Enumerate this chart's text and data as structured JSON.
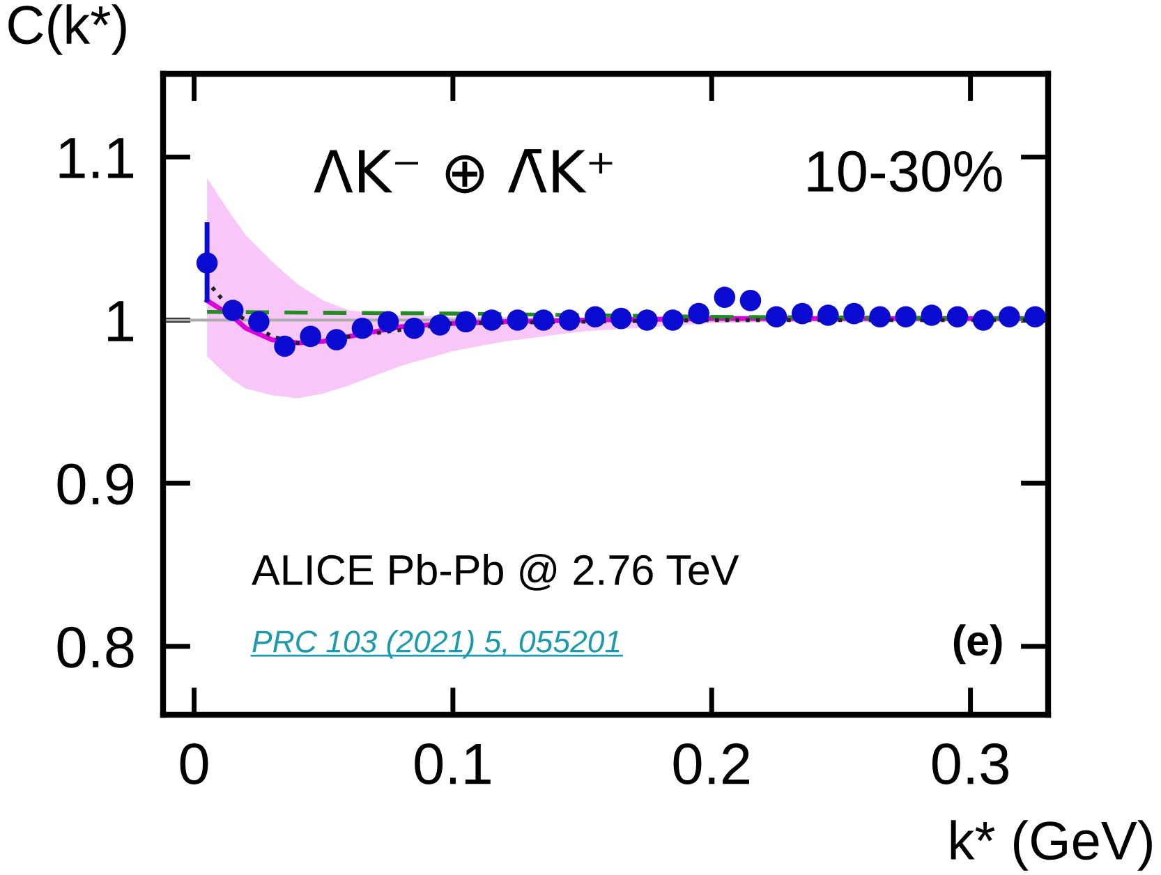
{
  "chart_data": {
    "type": "scatter",
    "xlabel": "k* (GeV)",
    "ylabel": "C(k*)",
    "annotations": [
      "ΛK⁻ ⊕ Λ̄K⁺",
      "10-30%",
      "ALICE Pb-Pb @ 2.76 TeV",
      "PRC 103 (2021) 5, 055201",
      "(e)"
    ],
    "xlim": [
      -0.012,
      0.33
    ],
    "ylim": [
      0.758,
      1.151
    ],
    "xticks": [
      0,
      0.1,
      0.2,
      0.3
    ],
    "yticks": [
      0.8,
      0.9,
      1,
      1.1
    ],
    "grid": false,
    "legend": false,
    "ref_lines": [
      {
        "axis": "y",
        "value": 1,
        "color": "#aaaaaa"
      }
    ],
    "series": [
      {
        "type": "line",
        "color": "#dd00dd",
        "x": [
          0.005,
          0.01,
          0.015,
          0.02,
          0.03,
          0.04,
          0.05,
          0.06,
          0.07,
          0.08,
          0.1,
          0.12,
          0.15,
          0.2,
          0.25,
          0.325
        ],
        "values": [
          1.012,
          1.007,
          1.002,
          0.995,
          0.988,
          0.986,
          0.987,
          0.99,
          0.993,
          0.996,
          0.998,
          0.999,
          1.0,
          1.001,
          1.001,
          1.001
        ],
        "lower": [
          0.978,
          0.97,
          0.963,
          0.958,
          0.954,
          0.952,
          0.955,
          0.96,
          0.966,
          0.972,
          0.981,
          0.987,
          0.993,
          0.998,
          1.0,
          1.0
        ],
        "upper": [
          1.087,
          1.075,
          1.063,
          1.052,
          1.036,
          1.022,
          1.012,
          1.006,
          1.004,
          1.003,
          1.002,
          1.002,
          1.001,
          1.001,
          1.001,
          1.001
        ]
      },
      {
        "type": "line",
        "color": "#228b22",
        "line_style": "dashed",
        "x": [
          0.005,
          0.1,
          0.2,
          0.325
        ],
        "values": [
          1.005,
          1.004,
          1.002,
          1.001
        ]
      },
      {
        "type": "line",
        "color": "#222222",
        "line_style": "dotted",
        "x": [
          0.007,
          0.015,
          0.03,
          0.04,
          0.06,
          0.1,
          0.2,
          0.325
        ],
        "values": [
          1.02,
          1.005,
          0.99,
          0.986,
          0.99,
          0.998,
          1.0,
          1.0
        ]
      },
      {
        "color": "#0a0ad0",
        "marker": "circle",
        "x": [
          0.005,
          0.015,
          0.025,
          0.035,
          0.045,
          0.055,
          0.065,
          0.075,
          0.085,
          0.095,
          0.105,
          0.115,
          0.125,
          0.135,
          0.145,
          0.155,
          0.165,
          0.175,
          0.185,
          0.195,
          0.205,
          0.215,
          0.225,
          0.235,
          0.245,
          0.255,
          0.265,
          0.275,
          0.285,
          0.295,
          0.305,
          0.315,
          0.325
        ],
        "values": [
          1.035,
          1.006,
          0.999,
          0.984,
          0.99,
          0.988,
          0.995,
          0.999,
          0.995,
          0.997,
          0.999,
          1.0,
          1.0,
          1.0,
          1.0,
          1.002,
          1.001,
          1.0,
          1.0,
          1.004,
          1.014,
          1.012,
          1.002,
          1.004,
          1.003,
          1.004,
          1.002,
          1.002,
          1.003,
          1.002,
          1.0,
          1.002,
          1.002
        ],
        "errors": [
          [
            1.011,
            1.06
          ],
          0.005,
          null,
          null,
          null,
          null,
          null,
          null,
          null,
          null,
          null,
          null,
          null,
          null,
          null,
          null,
          null,
          null,
          null,
          null,
          null,
          null,
          null,
          null,
          null,
          null,
          null,
          null,
          null,
          null,
          null,
          null,
          null
        ]
      }
    ]
  }
}
